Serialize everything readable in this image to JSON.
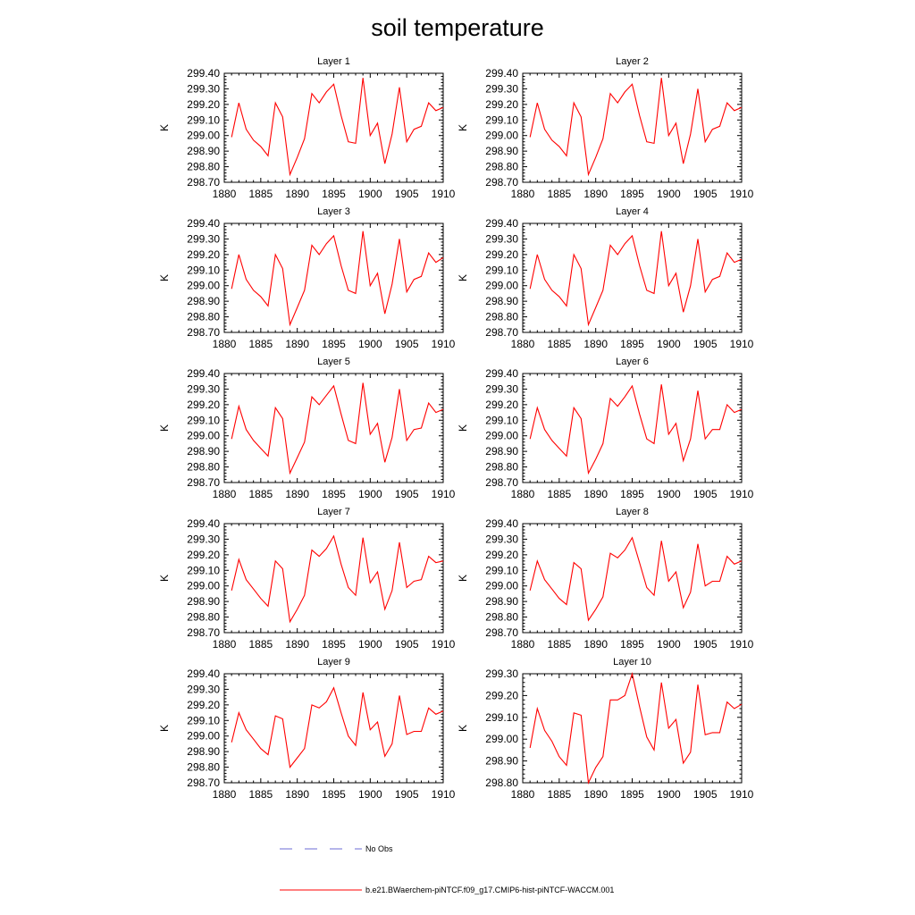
{
  "title": "soil temperature",
  "legend": {
    "obs_label": "No Obs",
    "model_label": "b.e21.BWaerchem-piNTCF.f09_g17.CMIP6-hist-piNTCF-WACCM.001"
  },
  "colors": {
    "model": "#ff0000",
    "obs": "#6b6bd6",
    "axis": "#000000"
  },
  "chart_data": [
    {
      "type": "line",
      "title": "Layer 1",
      "xlabel": "",
      "ylabel": "K",
      "xlim": [
        1880,
        1910
      ],
      "ylim": [
        298.7,
        299.4
      ],
      "xticks": [
        1880,
        1885,
        1890,
        1895,
        1900,
        1905,
        1910
      ],
      "yticks": [
        "298.70",
        "298.80",
        "298.90",
        "299.00",
        "299.10",
        "299.20",
        "299.30",
        "299.40"
      ],
      "x": [
        1881,
        1882,
        1883,
        1884,
        1885,
        1886,
        1887,
        1888,
        1889,
        1890,
        1891,
        1892,
        1893,
        1894,
        1895,
        1896,
        1897,
        1898,
        1899,
        1900,
        1901,
        1902,
        1903,
        1904,
        1905,
        1906,
        1907,
        1908,
        1909,
        1910
      ],
      "series": [
        {
          "values": [
            298.99,
            299.21,
            299.04,
            298.97,
            298.93,
            298.87,
            299.21,
            299.12,
            298.75,
            298.86,
            298.98,
            299.27,
            299.21,
            299.28,
            299.33,
            299.13,
            298.96,
            298.95,
            299.37,
            299.0,
            299.08,
            298.82,
            299.01,
            299.31,
            298.96,
            299.04,
            299.06,
            299.21,
            299.16,
            299.18
          ]
        }
      ]
    },
    {
      "type": "line",
      "title": "Layer 2",
      "xlabel": "",
      "ylabel": "K",
      "xlim": [
        1880,
        1910
      ],
      "ylim": [
        298.7,
        299.4
      ],
      "xticks": [
        1880,
        1885,
        1890,
        1895,
        1900,
        1905,
        1910
      ],
      "yticks": [
        "298.70",
        "298.80",
        "298.90",
        "299.00",
        "299.10",
        "299.20",
        "299.30",
        "299.40"
      ],
      "x": [
        1881,
        1882,
        1883,
        1884,
        1885,
        1886,
        1887,
        1888,
        1889,
        1890,
        1891,
        1892,
        1893,
        1894,
        1895,
        1896,
        1897,
        1898,
        1899,
        1900,
        1901,
        1902,
        1903,
        1904,
        1905,
        1906,
        1907,
        1908,
        1909,
        1910
      ],
      "series": [
        {
          "values": [
            298.99,
            299.21,
            299.04,
            298.97,
            298.93,
            298.87,
            299.21,
            299.12,
            298.75,
            298.86,
            298.98,
            299.27,
            299.21,
            299.28,
            299.33,
            299.13,
            298.96,
            298.95,
            299.37,
            299.0,
            299.08,
            298.82,
            299.01,
            299.3,
            298.96,
            299.04,
            299.06,
            299.21,
            299.16,
            299.18
          ]
        }
      ]
    },
    {
      "type": "line",
      "title": "Layer 3",
      "xlabel": "",
      "ylabel": "K",
      "xlim": [
        1880,
        1910
      ],
      "ylim": [
        298.7,
        299.4
      ],
      "xticks": [
        1880,
        1885,
        1890,
        1895,
        1900,
        1905,
        1910
      ],
      "yticks": [
        "298.70",
        "298.80",
        "298.90",
        "299.00",
        "299.10",
        "299.20",
        "299.30",
        "299.40"
      ],
      "x": [
        1881,
        1882,
        1883,
        1884,
        1885,
        1886,
        1887,
        1888,
        1889,
        1890,
        1891,
        1892,
        1893,
        1894,
        1895,
        1896,
        1897,
        1898,
        1899,
        1900,
        1901,
        1902,
        1903,
        1904,
        1905,
        1906,
        1907,
        1908,
        1909,
        1910
      ],
      "series": [
        {
          "values": [
            298.98,
            299.2,
            299.04,
            298.97,
            298.93,
            298.87,
            299.2,
            299.11,
            298.75,
            298.86,
            298.97,
            299.26,
            299.2,
            299.27,
            299.32,
            299.13,
            298.97,
            298.95,
            299.35,
            299.0,
            299.08,
            298.82,
            299.01,
            299.3,
            298.96,
            299.04,
            299.06,
            299.21,
            299.15,
            299.18
          ]
        }
      ]
    },
    {
      "type": "line",
      "title": "Layer 4",
      "xlabel": "",
      "ylabel": "K",
      "xlim": [
        1880,
        1910
      ],
      "ylim": [
        298.7,
        299.4
      ],
      "xticks": [
        1880,
        1885,
        1890,
        1895,
        1900,
        1905,
        1910
      ],
      "yticks": [
        "298.70",
        "298.80",
        "298.90",
        "299.00",
        "299.10",
        "299.20",
        "299.30",
        "299.40"
      ],
      "x": [
        1881,
        1882,
        1883,
        1884,
        1885,
        1886,
        1887,
        1888,
        1889,
        1890,
        1891,
        1892,
        1893,
        1894,
        1895,
        1896,
        1897,
        1898,
        1899,
        1900,
        1901,
        1902,
        1903,
        1904,
        1905,
        1906,
        1907,
        1908,
        1909,
        1910
      ],
      "series": [
        {
          "values": [
            298.98,
            299.2,
            299.04,
            298.97,
            298.93,
            298.87,
            299.2,
            299.11,
            298.75,
            298.86,
            298.97,
            299.26,
            299.2,
            299.27,
            299.32,
            299.13,
            298.97,
            298.95,
            299.35,
            299.0,
            299.08,
            298.83,
            299.0,
            299.3,
            298.96,
            299.04,
            299.06,
            299.21,
            299.15,
            299.17
          ]
        }
      ]
    },
    {
      "type": "line",
      "title": "Layer 5",
      "xlabel": "",
      "ylabel": "K",
      "xlim": [
        1880,
        1910
      ],
      "ylim": [
        298.7,
        299.4
      ],
      "xticks": [
        1880,
        1885,
        1890,
        1895,
        1900,
        1905,
        1910
      ],
      "yticks": [
        "298.70",
        "298.80",
        "298.90",
        "299.00",
        "299.10",
        "299.20",
        "299.30",
        "299.40"
      ],
      "x": [
        1881,
        1882,
        1883,
        1884,
        1885,
        1886,
        1887,
        1888,
        1889,
        1890,
        1891,
        1892,
        1893,
        1894,
        1895,
        1896,
        1897,
        1898,
        1899,
        1900,
        1901,
        1902,
        1903,
        1904,
        1905,
        1906,
        1907,
        1908,
        1909,
        1910
      ],
      "series": [
        {
          "values": [
            298.98,
            299.19,
            299.04,
            298.97,
            298.92,
            298.87,
            299.18,
            299.11,
            298.76,
            298.86,
            298.96,
            299.25,
            299.2,
            299.26,
            299.32,
            299.14,
            298.97,
            298.95,
            299.34,
            299.01,
            299.08,
            298.83,
            298.99,
            299.3,
            298.97,
            299.04,
            299.05,
            299.21,
            299.15,
            299.17
          ]
        }
      ]
    },
    {
      "type": "line",
      "title": "Layer 6",
      "xlabel": "",
      "ylabel": "K",
      "xlim": [
        1880,
        1910
      ],
      "ylim": [
        298.7,
        299.4
      ],
      "xticks": [
        1880,
        1885,
        1890,
        1895,
        1900,
        1905,
        1910
      ],
      "yticks": [
        "298.70",
        "298.80",
        "298.90",
        "299.00",
        "299.10",
        "299.20",
        "299.30",
        "299.40"
      ],
      "x": [
        1881,
        1882,
        1883,
        1884,
        1885,
        1886,
        1887,
        1888,
        1889,
        1890,
        1891,
        1892,
        1893,
        1894,
        1895,
        1896,
        1897,
        1898,
        1899,
        1900,
        1901,
        1902,
        1903,
        1904,
        1905,
        1906,
        1907,
        1908,
        1909,
        1910
      ],
      "series": [
        {
          "values": [
            298.98,
            299.18,
            299.04,
            298.97,
            298.92,
            298.87,
            299.18,
            299.11,
            298.76,
            298.85,
            298.95,
            299.24,
            299.19,
            299.25,
            299.32,
            299.14,
            298.98,
            298.95,
            299.33,
            299.01,
            299.08,
            298.84,
            298.98,
            299.29,
            298.98,
            299.04,
            299.04,
            299.2,
            299.15,
            299.17
          ]
        }
      ]
    },
    {
      "type": "line",
      "title": "Layer 7",
      "xlabel": "",
      "ylabel": "K",
      "xlim": [
        1880,
        1910
      ],
      "ylim": [
        298.7,
        299.4
      ],
      "xticks": [
        1880,
        1885,
        1890,
        1895,
        1900,
        1905,
        1910
      ],
      "yticks": [
        "298.70",
        "298.80",
        "298.90",
        "299.00",
        "299.10",
        "299.20",
        "299.30",
        "299.40"
      ],
      "x": [
        1881,
        1882,
        1883,
        1884,
        1885,
        1886,
        1887,
        1888,
        1889,
        1890,
        1891,
        1892,
        1893,
        1894,
        1895,
        1896,
        1897,
        1898,
        1899,
        1900,
        1901,
        1902,
        1903,
        1904,
        1905,
        1906,
        1907,
        1908,
        1909,
        1910
      ],
      "series": [
        {
          "values": [
            298.97,
            299.17,
            299.04,
            298.98,
            298.92,
            298.87,
            299.16,
            299.11,
            298.77,
            298.85,
            298.94,
            299.23,
            299.19,
            299.24,
            299.32,
            299.14,
            298.99,
            298.94,
            299.31,
            299.02,
            299.09,
            298.85,
            298.97,
            299.28,
            298.99,
            299.03,
            299.04,
            299.19,
            299.15,
            299.16
          ]
        }
      ]
    },
    {
      "type": "line",
      "title": "Layer 8",
      "xlabel": "",
      "ylabel": "K",
      "xlim": [
        1880,
        1910
      ],
      "ylim": [
        298.7,
        299.4
      ],
      "xticks": [
        1880,
        1885,
        1890,
        1895,
        1900,
        1905,
        1910
      ],
      "yticks": [
        "298.70",
        "298.80",
        "298.90",
        "299.00",
        "299.10",
        "299.20",
        "299.30",
        "299.40"
      ],
      "x": [
        1881,
        1882,
        1883,
        1884,
        1885,
        1886,
        1887,
        1888,
        1889,
        1890,
        1891,
        1892,
        1893,
        1894,
        1895,
        1896,
        1897,
        1898,
        1899,
        1900,
        1901,
        1902,
        1903,
        1904,
        1905,
        1906,
        1907,
        1908,
        1909,
        1910
      ],
      "series": [
        {
          "values": [
            298.97,
            299.16,
            299.04,
            298.98,
            298.92,
            298.88,
            299.15,
            299.11,
            298.78,
            298.85,
            298.93,
            299.21,
            299.18,
            299.23,
            299.31,
            299.15,
            298.99,
            298.94,
            299.29,
            299.03,
            299.09,
            298.86,
            298.96,
            299.27,
            299.0,
            299.03,
            299.03,
            299.19,
            299.14,
            299.16
          ]
        }
      ]
    },
    {
      "type": "line",
      "title": "Layer 9",
      "xlabel": "",
      "ylabel": "K",
      "xlim": [
        1880,
        1910
      ],
      "ylim": [
        298.7,
        299.4
      ],
      "xticks": [
        1880,
        1885,
        1890,
        1895,
        1900,
        1905,
        1910
      ],
      "yticks": [
        "298.70",
        "298.80",
        "298.90",
        "299.00",
        "299.10",
        "299.20",
        "299.30",
        "299.40"
      ],
      "x": [
        1881,
        1882,
        1883,
        1884,
        1885,
        1886,
        1887,
        1888,
        1889,
        1890,
        1891,
        1892,
        1893,
        1894,
        1895,
        1896,
        1897,
        1898,
        1899,
        1900,
        1901,
        1902,
        1903,
        1904,
        1905,
        1906,
        1907,
        1908,
        1909,
        1910
      ],
      "series": [
        {
          "values": [
            298.96,
            299.15,
            299.04,
            298.98,
            298.92,
            298.88,
            299.13,
            299.11,
            298.8,
            298.86,
            298.92,
            299.2,
            299.18,
            299.22,
            299.31,
            299.15,
            299.0,
            298.94,
            299.28,
            299.04,
            299.09,
            298.87,
            298.95,
            299.26,
            299.01,
            299.03,
            299.03,
            299.18,
            299.14,
            299.16
          ]
        }
      ]
    },
    {
      "type": "line",
      "title": "Layer 10",
      "xlabel": "",
      "ylabel": "K",
      "xlim": [
        1880,
        1910
      ],
      "ylim": [
        298.8,
        299.3
      ],
      "xticks": [
        1880,
        1885,
        1890,
        1895,
        1900,
        1905,
        1910
      ],
      "yticks": [
        "298.80",
        "298.90",
        "299.00",
        "299.10",
        "299.20",
        "299.30"
      ],
      "x": [
        1881,
        1882,
        1883,
        1884,
        1885,
        1886,
        1887,
        1888,
        1889,
        1890,
        1891,
        1892,
        1893,
        1894,
        1895,
        1896,
        1897,
        1898,
        1899,
        1900,
        1901,
        1902,
        1903,
        1904,
        1905,
        1906,
        1907,
        1908,
        1909,
        1910
      ],
      "series": [
        {
          "values": [
            298.96,
            299.14,
            299.04,
            298.99,
            298.92,
            298.88,
            299.12,
            299.11,
            298.8,
            298.87,
            298.92,
            299.18,
            299.18,
            299.2,
            299.3,
            299.15,
            299.01,
            298.95,
            299.26,
            299.05,
            299.09,
            298.89,
            298.94,
            299.25,
            299.02,
            299.03,
            299.03,
            299.17,
            299.14,
            299.16
          ]
        }
      ]
    }
  ]
}
